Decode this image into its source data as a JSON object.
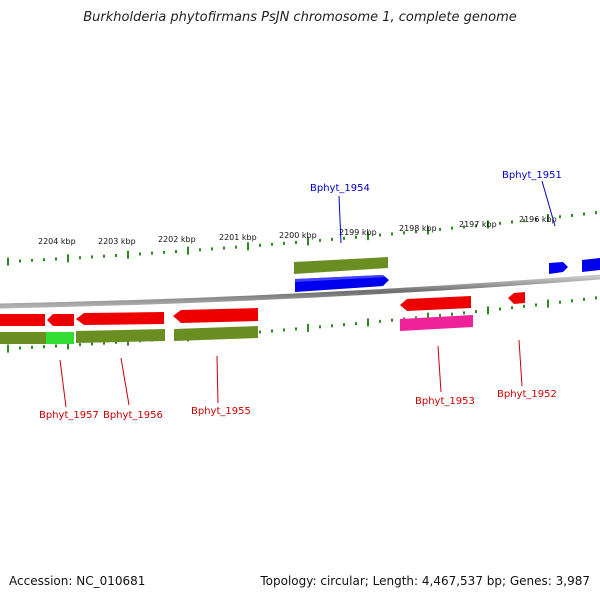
{
  "title": "Burkholderia phytofirmans PsJN chromosome 1, complete genome",
  "footer": {
    "accession": "Accession: NC_010681",
    "summary": "Topology: circular; Length: 4,467,537 bp; Genes: 3,987"
  },
  "colors": {
    "backbone": "#8a8a8a",
    "tick": "#2e8b22",
    "plus_label": "#0000cc",
    "minus_label": "#cc0000",
    "red_gene": "#ee0000",
    "blue_gene": "#0000ee",
    "olive": "#6b8e23",
    "green": "#33dd33",
    "magenta": "#ee2299"
  },
  "scale": {
    "tick_labels": [
      "2204 kbp",
      "2203 kbp",
      "2202 kbp",
      "2201 kbp",
      "2200 kbp",
      "2199 kbp",
      "2198 kbp",
      "2197 kbp",
      "2196 kbp"
    ]
  },
  "gene_labels": [
    "Bphyt_1954",
    "Bphyt_1951",
    "Bphyt_1957",
    "Bphyt_1956",
    "Bphyt_1955",
    "Bphyt_1953",
    "Bphyt_1952"
  ]
}
